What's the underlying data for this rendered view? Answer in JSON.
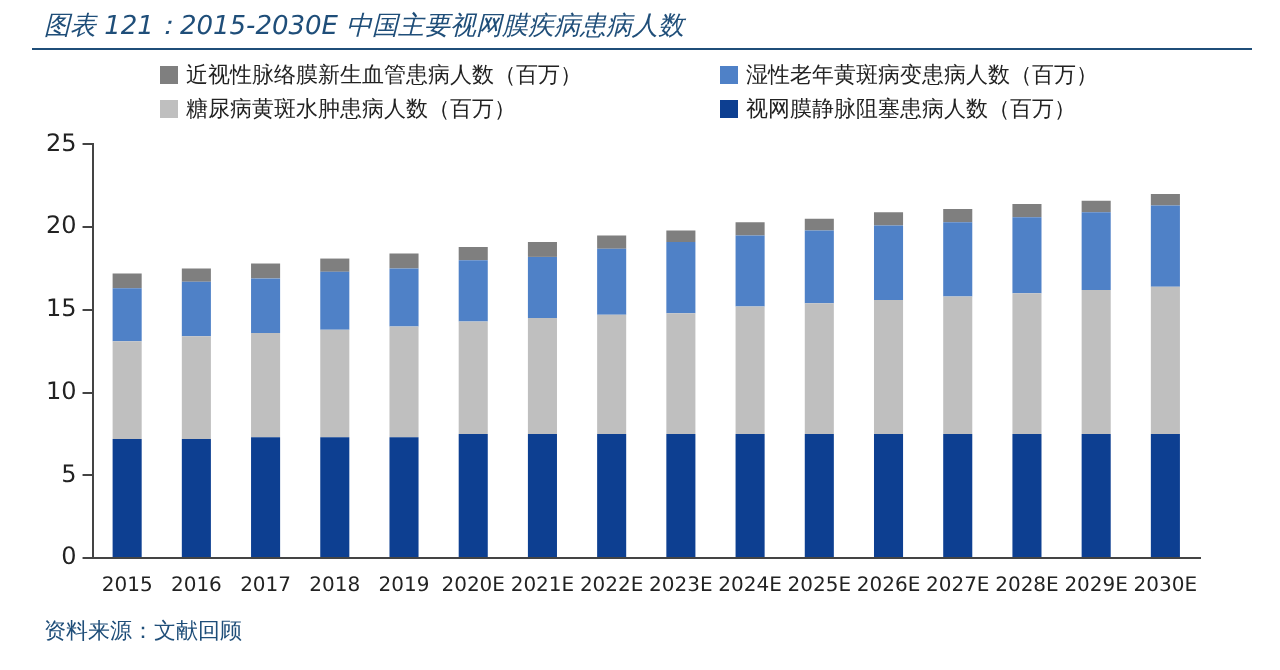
{
  "chart_data": {
    "type": "bar",
    "stacked": true,
    "title": "图表 121：2015-2030E 中国主要视网膜疾病患病人数",
    "categories": [
      "2015",
      "2016",
      "2017",
      "2018",
      "2019",
      "2020E",
      "2021E",
      "2022E",
      "2023E",
      "2024E",
      "2025E",
      "2026E",
      "2027E",
      "2028E",
      "2029E",
      "2030E"
    ],
    "series": [
      {
        "name": "视网膜静脉阻塞患病人数（百万）",
        "color": "#0d3f91",
        "values": [
          7.2,
          7.2,
          7.3,
          7.3,
          7.3,
          7.5,
          7.5,
          7.5,
          7.5,
          7.5,
          7.5,
          7.5,
          7.5,
          7.5,
          7.5,
          7.5
        ]
      },
      {
        "name": "糖尿病黄斑水肿患病人数（百万）",
        "color": "#bfbfbf",
        "values": [
          5.9,
          6.2,
          6.3,
          6.5,
          6.7,
          6.8,
          7.0,
          7.2,
          7.3,
          7.7,
          7.9,
          8.1,
          8.3,
          8.5,
          8.7,
          8.9
        ]
      },
      {
        "name": "湿性老年黄斑病变患病人数（百万）",
        "color": "#4f81c7",
        "values": [
          3.2,
          3.3,
          3.3,
          3.5,
          3.5,
          3.7,
          3.7,
          4.0,
          4.3,
          4.3,
          4.4,
          4.5,
          4.5,
          4.6,
          4.7,
          4.9
        ]
      },
      {
        "name": "近视性脉络膜新生血管患病人数（百万）",
        "color": "#7f7f7f",
        "values": [
          0.9,
          0.8,
          0.9,
          0.8,
          0.9,
          0.8,
          0.9,
          0.8,
          0.7,
          0.8,
          0.7,
          0.8,
          0.8,
          0.8,
          0.7,
          0.7
        ]
      }
    ],
    "ylim": [
      0,
      25
    ],
    "yticks": [
      0,
      5,
      10,
      15,
      20,
      25
    ],
    "grid": false,
    "legend": "top",
    "annotations": [
      "资料来源：文献回顾"
    ]
  }
}
